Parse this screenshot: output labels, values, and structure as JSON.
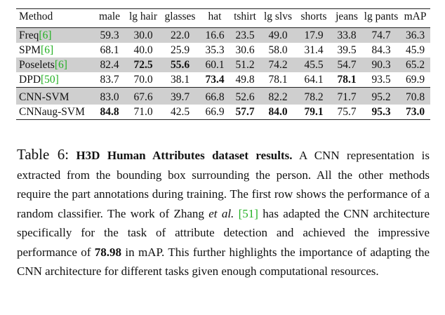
{
  "table": {
    "headers": [
      "Method",
      "male",
      "lg hair",
      "glasses",
      "hat",
      "tshirt",
      "lg slvs",
      "shorts",
      "jeans",
      "lg pants",
      "mAP"
    ],
    "group1": [
      {
        "name": "Freq",
        "ref": "[6]",
        "shaded": true,
        "cells": [
          "59.3",
          "30.0",
          "22.0",
          "16.6",
          "23.5",
          "49.0",
          "17.9",
          "33.8",
          "74.7",
          "36.3"
        ],
        "bold": []
      },
      {
        "name": "SPM",
        "ref": "[6]",
        "shaded": false,
        "cells": [
          "68.1",
          "40.0",
          "25.9",
          "35.3",
          "30.6",
          "58.0",
          "31.4",
          "39.5",
          "84.3",
          "45.9"
        ],
        "bold": []
      },
      {
        "name": "Poselets",
        "ref": "[6]",
        "shaded": true,
        "cells": [
          "82.4",
          "72.5",
          "55.6",
          "60.1",
          "51.2",
          "74.2",
          "45.5",
          "54.7",
          "90.3",
          "65.2"
        ],
        "bold": [
          1,
          2
        ]
      },
      {
        "name": "DPD",
        "ref": "[50]",
        "shaded": false,
        "cells": [
          "83.7",
          "70.0",
          "38.1",
          "73.4",
          "49.8",
          "78.1",
          "64.1",
          "78.1",
          "93.5",
          "69.9"
        ],
        "bold": [
          3,
          7
        ]
      }
    ],
    "group2": [
      {
        "name": "CNN-SVM",
        "ref": "",
        "shaded": true,
        "cells": [
          "83.0",
          "67.6",
          "39.7",
          "66.8",
          "52.6",
          "82.2",
          "78.2",
          "71.7",
          "95.2",
          "70.8"
        ],
        "bold": []
      },
      {
        "name": "CNNaug-SVM",
        "ref": "",
        "shaded": false,
        "cells": [
          "84.8",
          "71.0",
          "42.5",
          "66.9",
          "57.7",
          "84.0",
          "79.1",
          "75.7",
          "95.3",
          "73.0"
        ],
        "bold": [
          0,
          4,
          5,
          6,
          8,
          9
        ]
      }
    ]
  },
  "caption": {
    "label": "Table 6:",
    "title": "H3D Human Attributes dataset results.",
    "text1": " A CNN representation is extracted from the bounding box surrounding the person. All the other methods require the part annotations during training. The first row shows the performance of a random classifier. The work of Zhang ",
    "etal": "et al.",
    "ref": "[51]",
    "text2": " has adapted the CNN architecture specifically for the task of attribute detection and achieved the impressive performance of ",
    "highlight": "78.98",
    "text3": " in mAP. This further highlights the importance of adapting the CNN architecture for different tasks given enough computational resources."
  },
  "colors": {
    "shade": "#cfcfcf",
    "ref_green": "#22b022"
  }
}
